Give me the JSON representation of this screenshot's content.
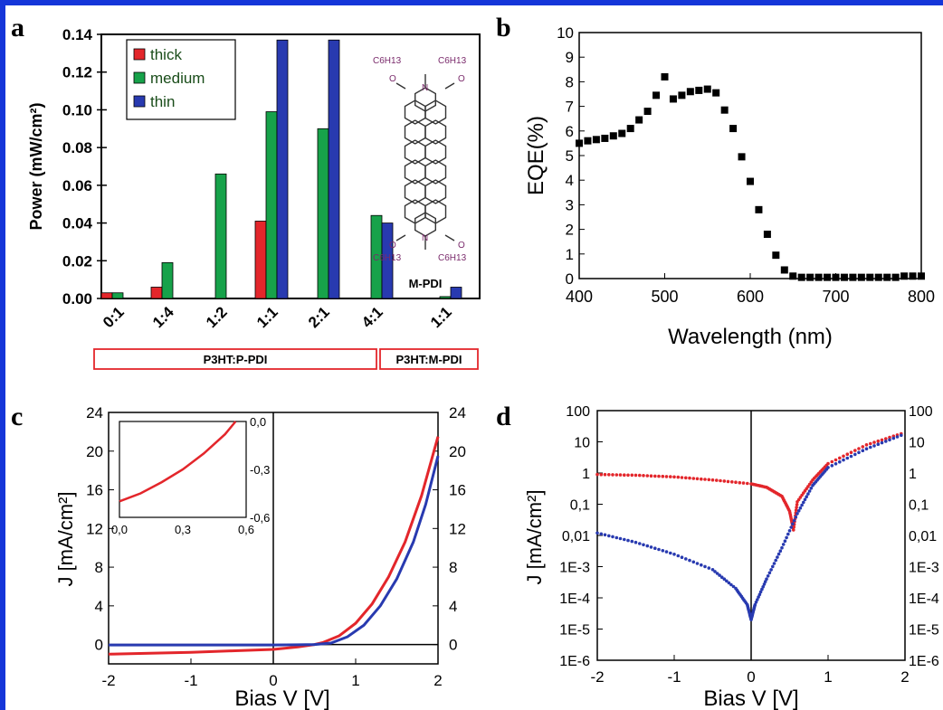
{
  "colors": {
    "border": "#1536d9",
    "red": "#e3262b",
    "green": "#17a24a",
    "blue": "#283ab0",
    "black": "#000000"
  },
  "panels": {
    "a": {
      "letter": "a"
    },
    "b": {
      "letter": "b"
    },
    "c": {
      "letter": "c"
    },
    "d": {
      "letter": "d"
    }
  },
  "molecule": {
    "label": "M-PDI",
    "subst_top_left": "C6H13",
    "subst_top_right": "C6H13",
    "subst_bottom_left": "C6H13",
    "subst_bottom_right": "C6H13",
    "atom_N": "N",
    "atom_O": "O"
  },
  "group_boxes": [
    "P3HT:P-PDI",
    "P3HT:M-PDI"
  ],
  "chart_data": [
    {
      "type": "bar",
      "panel": "a",
      "ylabel": "Power (mW/cm²)",
      "ylim": [
        0,
        0.14
      ],
      "yticks": [
        "0.00",
        "0.02",
        "0.04",
        "0.06",
        "0.08",
        "0.10",
        "0.12",
        "0.14"
      ],
      "categories": [
        "0:1",
        "1:4",
        "1:2",
        "1:1",
        "2:1",
        "4:1",
        "1:1"
      ],
      "series": [
        {
          "name": "thick",
          "color": "#e3262b",
          "values": [
            0.003,
            0.006,
            null,
            0.041,
            null,
            null,
            null
          ]
        },
        {
          "name": "medium",
          "color": "#17a24a",
          "values": [
            0.003,
            0.019,
            0.066,
            0.099,
            0.09,
            0.044,
            0.001
          ]
        },
        {
          "name": "thin",
          "color": "#283ab0",
          "values": [
            null,
            null,
            null,
            0.137,
            0.137,
            0.04,
            0.006
          ]
        }
      ],
      "legend": "top-left"
    },
    {
      "type": "scatter",
      "panel": "b",
      "xlabel": "Wavelength (nm)",
      "ylabel": "EQE(%)",
      "xlim": [
        400,
        800
      ],
      "ylim": [
        0,
        10
      ],
      "xticks": [
        "400",
        "500",
        "600",
        "700",
        "800"
      ],
      "yticks": [
        "0",
        "1",
        "2",
        "3",
        "4",
        "5",
        "6",
        "7",
        "8",
        "9",
        "10"
      ],
      "x": [
        400,
        410,
        420,
        430,
        440,
        450,
        460,
        470,
        480,
        490,
        500,
        510,
        520,
        530,
        540,
        550,
        560,
        570,
        580,
        590,
        600,
        610,
        620,
        630,
        640,
        650,
        660,
        670,
        680,
        690,
        700,
        710,
        720,
        730,
        740,
        750,
        760,
        770,
        780,
        790,
        800
      ],
      "y": [
        5.5,
        5.6,
        5.65,
        5.7,
        5.8,
        5.9,
        6.1,
        6.45,
        6.8,
        7.45,
        8.2,
        7.3,
        7.45,
        7.6,
        7.65,
        7.7,
        7.55,
        6.85,
        6.1,
        4.95,
        3.95,
        2.8,
        1.8,
        0.95,
        0.35,
        0.1,
        0.05,
        0.05,
        0.05,
        0.05,
        0.05,
        0.05,
        0.05,
        0.05,
        0.05,
        0.05,
        0.05,
        0.05,
        0.1,
        0.1,
        0.1
      ]
    },
    {
      "type": "line",
      "panel": "c",
      "xlabel": "Bias V [V]",
      "ylabel": "J [mA/cm²]",
      "xlim": [
        -2,
        2
      ],
      "ylim": [
        -2,
        24
      ],
      "xticks": [
        "-2",
        "-1",
        "0",
        "1",
        "2"
      ],
      "yticks": [
        "0",
        "4",
        "8",
        "12",
        "16",
        "20",
        "24"
      ],
      "series": [
        {
          "color": "#e3262b",
          "x": [
            -2,
            -1.5,
            -1,
            -0.5,
            0,
            0.3,
            0.5,
            0.6,
            0.8,
            1.0,
            1.2,
            1.4,
            1.6,
            1.8,
            2.0
          ],
          "y": [
            -1.0,
            -0.9,
            -0.8,
            -0.65,
            -0.5,
            -0.25,
            0.0,
            0.2,
            0.9,
            2.2,
            4.2,
            7.0,
            10.6,
            15.4,
            21.5
          ]
        },
        {
          "color": "#283ab0",
          "x": [
            -2,
            -1.5,
            -1,
            -0.5,
            0,
            0.3,
            0.5,
            0.7,
            0.9,
            1.1,
            1.3,
            1.5,
            1.7,
            1.85,
            2.0
          ],
          "y": [
            -0.05,
            -0.05,
            -0.05,
            -0.05,
            -0.05,
            -0.03,
            0.0,
            0.15,
            0.8,
            2.0,
            4.0,
            6.8,
            10.6,
            14.5,
            19.5
          ]
        }
      ],
      "inset": {
        "xlim": [
          0,
          0.6
        ],
        "ylim": [
          -0.6,
          0.0
        ],
        "xticks": [
          "0,0",
          "0,3",
          "0,6"
        ],
        "yticks": [
          "0,0",
          "-0,3",
          "-0,6"
        ],
        "series": [
          {
            "color": "#e3262b",
            "x": [
              0,
              0.1,
              0.2,
              0.3,
              0.4,
              0.5,
              0.55
            ],
            "y": [
              -0.5,
              -0.45,
              -0.38,
              -0.3,
              -0.2,
              -0.08,
              0.0
            ]
          }
        ]
      },
      "right_yticks": [
        "0",
        "4",
        "8",
        "12",
        "16",
        "20",
        "24"
      ]
    },
    {
      "type": "scatter",
      "panel": "d",
      "scale": "log",
      "xlabel": "Bias V [V]",
      "ylabel": "J [mA/cm²]",
      "xlim": [
        -2,
        2
      ],
      "ylim": [
        1e-06,
        100
      ],
      "xticks": [
        "-2",
        "-1",
        "0",
        "1",
        "2"
      ],
      "yticks": [
        "1E-6",
        "1E-5",
        "1E-4",
        "1E-3",
        "0,01",
        "0,1",
        "1",
        "10",
        "100"
      ],
      "right_yticks": [
        "1E-6",
        "1E-5",
        "1E-4",
        "1E-3",
        "0,01",
        "0,1",
        "1",
        "10",
        "100"
      ],
      "series": [
        {
          "color": "#e3262b",
          "x": [
            -2,
            -1.5,
            -1,
            -0.5,
            0,
            0.2,
            0.4,
            0.5,
            0.55,
            0.6,
            0.8,
            1.0,
            1.5,
            2.0
          ],
          "y": [
            0.9,
            0.85,
            0.75,
            0.6,
            0.45,
            0.35,
            0.18,
            0.06,
            0.015,
            0.12,
            0.6,
            2.0,
            8.0,
            20.0
          ]
        },
        {
          "color": "#283ab0",
          "x": [
            -2,
            -1.5,
            -1,
            -0.5,
            -0.2,
            -0.05,
            0,
            0.05,
            0.2,
            0.4,
            0.6,
            0.8,
            1.0,
            1.5,
            2.0
          ],
          "y": [
            0.012,
            0.006,
            0.0025,
            0.0008,
            0.0002,
            6e-05,
            2e-05,
            6e-05,
            0.0004,
            0.004,
            0.05,
            0.4,
            1.5,
            6.0,
            18.0
          ]
        }
      ]
    }
  ]
}
